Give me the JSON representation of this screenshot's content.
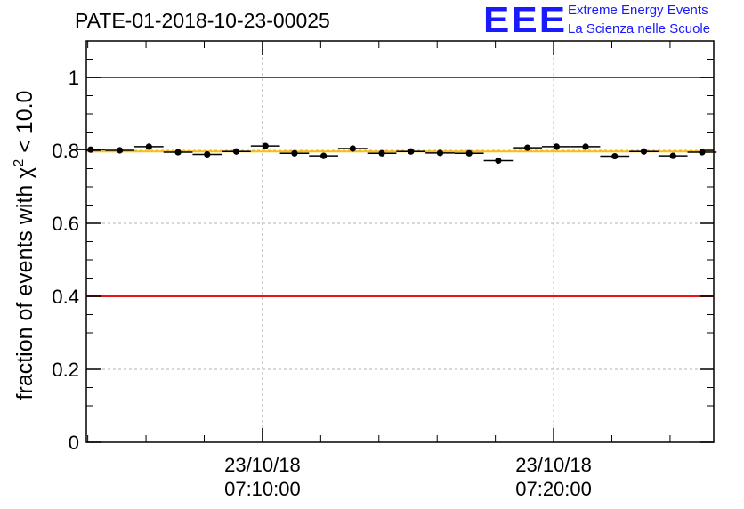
{
  "header": {
    "title": "PATE-01-2018-10-23-00025",
    "logo_mark": "EEE",
    "logo_line1": "Extreme Energy Events",
    "logo_line2": "La Scienza nelle Scuole"
  },
  "colors": {
    "limit_lines": "#e8141a",
    "mean_line": "#ffbf00",
    "logo": "#1a1aff",
    "markers": "#000000",
    "grid": "#999999"
  },
  "chart_data": {
    "type": "scatter",
    "title": "PATE-01-2018-10-23-00025",
    "ylabel_pre": "fraction of events with ",
    "ylabel_symbol": "χ",
    "ylabel_sup": "2",
    "ylabel_post": " < 10.0",
    "ylim": [
      0,
      1.1
    ],
    "y_ticks": [
      0,
      0.2,
      0.4,
      0.6,
      0.8,
      1
    ],
    "y_tick_labels": [
      "0",
      "0.2",
      "0.4",
      "0.6",
      "0.8",
      "1"
    ],
    "x_axis_type": "time",
    "xlim": [
      "07:03:57",
      "07:25:30"
    ],
    "x_major_ticks": [
      {
        "time": "07:10:00",
        "label_date": "23/10/18",
        "label_time": "07:10:00"
      },
      {
        "time": "07:20:00",
        "label_date": "23/10/18",
        "label_time": "07:20:00"
      }
    ],
    "x_minor_ticks": [
      "07:04:00",
      "07:06:00",
      "07:08:00",
      "07:12:00",
      "07:14:00",
      "07:16:00",
      "07:18:00",
      "07:22:00",
      "07:24:00"
    ],
    "grid": true,
    "reference_lines": [
      {
        "name": "upper limit",
        "y": 1.0,
        "color": "#e8141a"
      },
      {
        "name": "lower limit",
        "y": 0.4,
        "color": "#e8141a"
      },
      {
        "name": "mean",
        "y": 0.797,
        "color": "#ffbf00"
      }
    ],
    "bin_width_minutes": 1,
    "points": [
      {
        "x": "07:04:06",
        "y": 0.802
      },
      {
        "x": "07:05:06",
        "y": 0.8
      },
      {
        "x": "07:06:06",
        "y": 0.81
      },
      {
        "x": "07:07:06",
        "y": 0.795
      },
      {
        "x": "07:08:06",
        "y": 0.789
      },
      {
        "x": "07:09:06",
        "y": 0.797
      },
      {
        "x": "07:10:06",
        "y": 0.812
      },
      {
        "x": "07:11:06",
        "y": 0.792
      },
      {
        "x": "07:12:06",
        "y": 0.785
      },
      {
        "x": "07:13:06",
        "y": 0.805
      },
      {
        "x": "07:14:06",
        "y": 0.792
      },
      {
        "x": "07:15:06",
        "y": 0.797
      },
      {
        "x": "07:16:06",
        "y": 0.793
      },
      {
        "x": "07:17:06",
        "y": 0.792
      },
      {
        "x": "07:18:06",
        "y": 0.772
      },
      {
        "x": "07:19:06",
        "y": 0.807
      },
      {
        "x": "07:20:06",
        "y": 0.81
      },
      {
        "x": "07:21:06",
        "y": 0.81
      },
      {
        "x": "07:22:06",
        "y": 0.784
      },
      {
        "x": "07:23:06",
        "y": 0.797
      },
      {
        "x": "07:24:06",
        "y": 0.785
      },
      {
        "x": "07:25:06",
        "y": 0.795
      }
    ]
  }
}
